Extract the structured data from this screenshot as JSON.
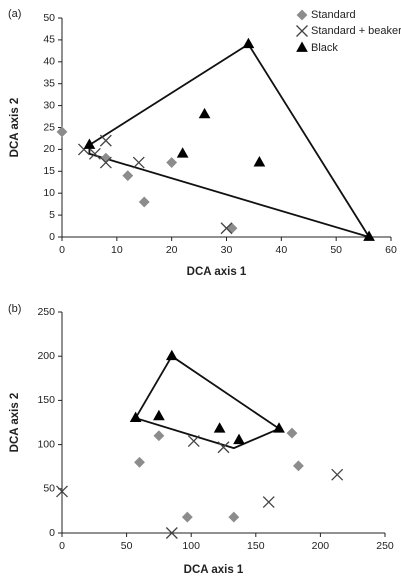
{
  "chart_data": [
    {
      "type": "scatter",
      "panel_label": "(a)",
      "xlabel": "DCA axis 1",
      "ylabel": "DCA axis 2",
      "xlim": [
        0,
        60
      ],
      "ylim": [
        0,
        50
      ],
      "xticks": [
        "0",
        "10",
        "20",
        "30",
        "40",
        "50",
        "60"
      ],
      "yticks": [
        "0",
        "5",
        "10",
        "15",
        "20",
        "25",
        "30",
        "35",
        "40",
        "45",
        "50"
      ],
      "legend_position": "top-right",
      "series": [
        {
          "name": "Standard",
          "marker": "diamond",
          "color": "#8c8c8c",
          "points": [
            [
              0,
              24
            ],
            [
              8,
              18
            ],
            [
              12,
              14
            ],
            [
              15,
              8
            ],
            [
              20,
              17
            ],
            [
              31,
              2
            ]
          ]
        },
        {
          "name": "Standard + beaker",
          "marker": "x",
          "color": "#444444",
          "points": [
            [
              4,
              20
            ],
            [
              6,
              19
            ],
            [
              8,
              17
            ],
            [
              8,
              22
            ],
            [
              14,
              17
            ],
            [
              30,
              2
            ]
          ]
        },
        {
          "name": "Black",
          "marker": "triangle",
          "color": "#000000",
          "points": [
            [
              5,
              21
            ],
            [
              22,
              19
            ],
            [
              26,
              28
            ],
            [
              34,
              44
            ],
            [
              36,
              17
            ],
            [
              56,
              0
            ]
          ]
        }
      ],
      "hull": [
        [
          5,
          21
        ],
        [
          34,
          44
        ],
        [
          56,
          0
        ],
        [
          5,
          19
        ]
      ]
    },
    {
      "type": "scatter",
      "panel_label": "(b)",
      "xlabel": "DCA axis 1",
      "ylabel": "DCA axis 2",
      "xlim": [
        0,
        250
      ],
      "ylim": [
        0,
        250
      ],
      "xticks": [
        "0",
        "50",
        "100",
        "150",
        "200",
        "250"
      ],
      "yticks": [
        "0",
        "50",
        "100",
        "150",
        "200",
        "250"
      ],
      "series": [
        {
          "name": "Standard",
          "marker": "diamond",
          "color": "#8c8c8c",
          "points": [
            [
              60,
              80
            ],
            [
              75,
              110
            ],
            [
              97,
              18
            ],
            [
              133,
              18
            ],
            [
              178,
              113
            ],
            [
              183,
              76
            ]
          ]
        },
        {
          "name": "Standard + beaker",
          "marker": "x",
          "color": "#444444",
          "points": [
            [
              0,
              47
            ],
            [
              85,
              0
            ],
            [
              102,
              104
            ],
            [
              125,
              97
            ],
            [
              160,
              35
            ],
            [
              213,
              66
            ]
          ]
        },
        {
          "name": "Black",
          "marker": "triangle",
          "color": "#000000",
          "points": [
            [
              57,
              130
            ],
            [
              85,
              200
            ],
            [
              75,
              132
            ],
            [
              122,
              118
            ],
            [
              137,
              105
            ],
            [
              168,
              118
            ]
          ]
        }
      ],
      "hull": [
        [
          57,
          130
        ],
        [
          85,
          200
        ],
        [
          168,
          118
        ],
        [
          133,
          96
        ]
      ]
    }
  ]
}
